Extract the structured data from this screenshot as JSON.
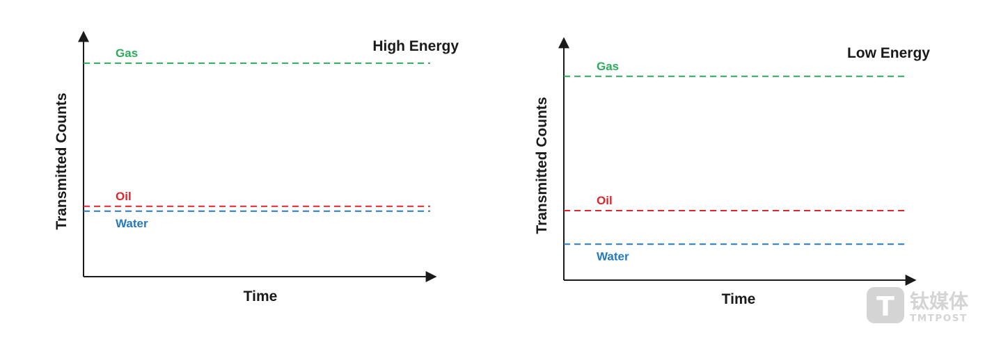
{
  "chart_data": [
    {
      "type": "line",
      "title": "High Energy",
      "xlabel": "Time",
      "ylabel": "Transmitted Counts",
      "ylim": [
        0,
        100
      ],
      "series": [
        {
          "name": "Gas",
          "value": 88,
          "color": "#2cab5a"
        },
        {
          "name": "Oil",
          "value": 29,
          "color": "#e2232a"
        },
        {
          "name": "Water",
          "value": 27,
          "color": "#2479c0"
        }
      ]
    },
    {
      "type": "line",
      "title": "Low Energy",
      "xlabel": "Time",
      "ylabel": "Transmitted Counts",
      "ylim": [
        0,
        100
      ],
      "series": [
        {
          "name": "Gas",
          "value": 85,
          "color": "#2cab5a"
        },
        {
          "name": "Oil",
          "value": 29,
          "color": "#e2232a"
        },
        {
          "name": "Water",
          "value": 15,
          "color": "#2479c0"
        }
      ]
    }
  ],
  "watermark": {
    "text": "钛媒体",
    "subtext": "TMTPOST",
    "logo_letter": "T",
    "color": "#d4d4d4"
  }
}
